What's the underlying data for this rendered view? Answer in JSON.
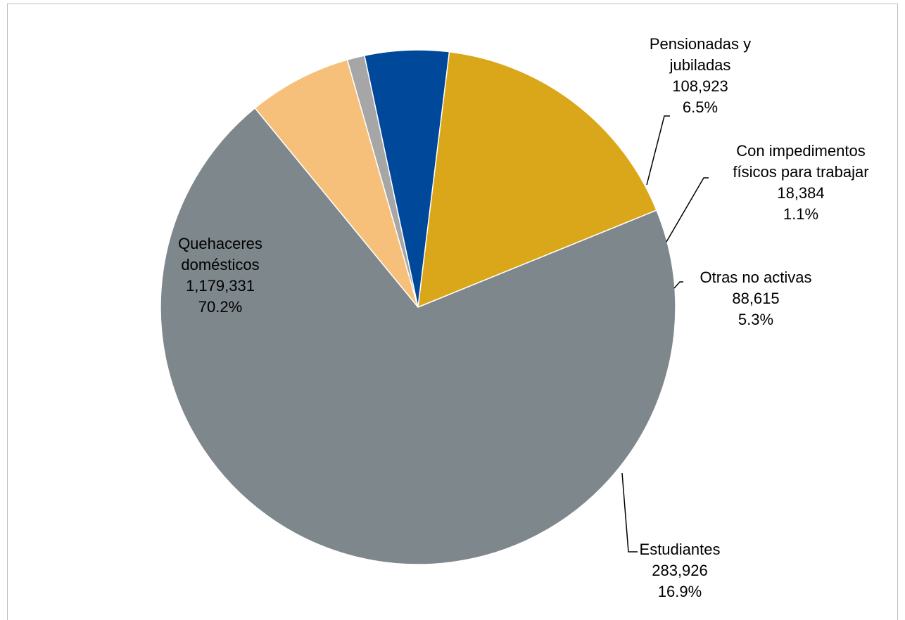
{
  "chart_data": {
    "type": "pie",
    "title": "",
    "start_angle_deg": 129.3,
    "direction": "clockwise",
    "slices": [
      {
        "label_lines": [
          "Pensionadas y",
          "jubiladas"
        ],
        "value_text": "108,923",
        "percent_text": "6.5%",
        "value": 108923,
        "percent": 6.5,
        "color": "#F6C07A"
      },
      {
        "label_lines": [
          "Con impedimentos",
          "físicos para trabajar"
        ],
        "value_text": "18,384",
        "percent_text": "1.1%",
        "value": 18384,
        "percent": 1.1,
        "color": "#A6A6A6"
      },
      {
        "label_lines": [
          "Otras no activas"
        ],
        "value_text": "88,615",
        "percent_text": "5.3%",
        "value": 88615,
        "percent": 5.3,
        "color": "#00489A"
      },
      {
        "label_lines": [
          "Estudiantes"
        ],
        "value_text": "283,926",
        "percent_text": "16.9%",
        "value": 283926,
        "percent": 16.9,
        "color": "#DAA61A"
      },
      {
        "label_lines": [
          "Quehaceres",
          "domésticos"
        ],
        "value_text": "1,179,331",
        "percent_text": "70.2%",
        "value": 1179331,
        "percent": 70.2,
        "color": "#7D878C"
      }
    ]
  }
}
